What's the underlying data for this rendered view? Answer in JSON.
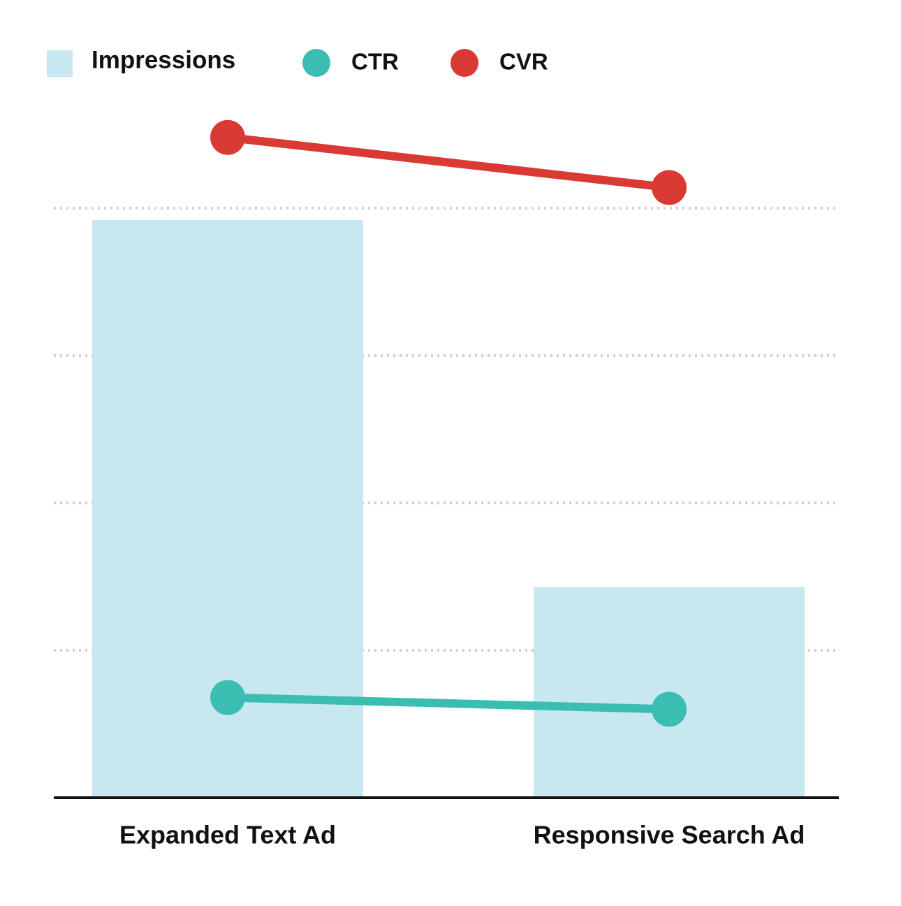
{
  "chart_data": {
    "type": "bar",
    "categories": [
      "Expanded Text Ad",
      "Responsive Search Ad"
    ],
    "series": [
      {
        "name": "Impressions",
        "type": "bar",
        "color": "#c7e7f1",
        "values": [
          3.92,
          1.43
        ]
      },
      {
        "name": "CTR",
        "type": "line",
        "color": "#3bbdb2",
        "values": [
          0.68,
          0.6
        ]
      },
      {
        "name": "CVR",
        "type": "line",
        "color": "#d93a33",
        "values": [
          4.48,
          4.14
        ]
      }
    ],
    "ylim": [
      0,
      5
    ],
    "yticks": [
      1,
      2,
      3,
      4
    ],
    "grid": true,
    "legend": "top"
  }
}
